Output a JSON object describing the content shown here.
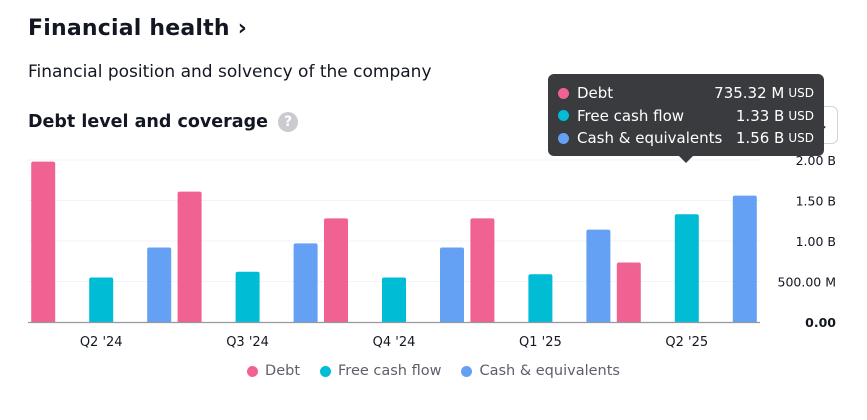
{
  "header": {
    "title": "Financial health",
    "chevron": "›",
    "subtitle": "Financial position and solvency of the company",
    "section_title": "Debt level and coverage",
    "help_icon": "?"
  },
  "colors": {
    "debt": "#f06292",
    "fcf": "#00bcd4",
    "cash": "#64a0f4",
    "grid": "#f0f3fa",
    "axis": "#9598a1"
  },
  "tooltip": {
    "rows": [
      {
        "label": "Debt",
        "value": "735.32 M",
        "unit": "USD"
      },
      {
        "label": "Free cash flow",
        "value": "1.33 B",
        "unit": "USD"
      },
      {
        "label": "Cash & equivalents",
        "value": "1.56 B",
        "unit": "USD"
      }
    ]
  },
  "chart_data": {
    "type": "bar",
    "categories": [
      "Q2 '24",
      "Q3 '24",
      "Q4 '24",
      "Q1 '25",
      "Q2 '25"
    ],
    "series": [
      {
        "name": "Debt",
        "values": [
          1.98,
          1.61,
          1.28,
          1.28,
          0.7353
        ]
      },
      {
        "name": "Free cash flow",
        "values": [
          0.55,
          0.62,
          0.55,
          0.59,
          1.33
        ]
      },
      {
        "name": "Cash & equivalents",
        "values": [
          0.92,
          0.97,
          0.92,
          1.14,
          1.56
        ]
      }
    ],
    "y_ticks": [
      {
        "value": 0,
        "label": "0.00"
      },
      {
        "value": 0.5,
        "label": "500.00 M"
      },
      {
        "value": 1.0,
        "label": "1.00 B"
      },
      {
        "value": 1.5,
        "label": "1.50 B"
      },
      {
        "value": 2.0,
        "label": "2.00 B"
      }
    ],
    "ylim": [
      0,
      2.0
    ],
    "y_unit": "B USD",
    "legend": [
      "Debt",
      "Free cash flow",
      "Cash & equivalents"
    ],
    "legend_position": "bottom",
    "grid": true
  }
}
